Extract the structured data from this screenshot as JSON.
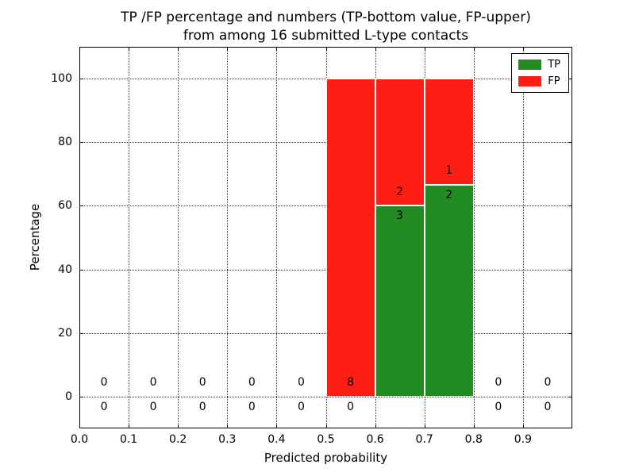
{
  "chart_data": {
    "type": "bar",
    "stacked": true,
    "title_line1": "TP /FP percentage and numbers (TP-bottom value, FP-upper)",
    "title_line2": "from among 16 submitted L-type contacts",
    "xlabel": "Predicted probability",
    "ylabel": "Percentage",
    "total_contacts": 16,
    "xlim": [
      0,
      1
    ],
    "ylim": [
      -10,
      110
    ],
    "bin_width": 0.1,
    "bin_starts": [
      0.0,
      0.1,
      0.2,
      0.3,
      0.4,
      0.5,
      0.6,
      0.7,
      0.8,
      0.9
    ],
    "xticks": [
      "0.0",
      "0.1",
      "0.2",
      "0.3",
      "0.4",
      "0.5",
      "0.6",
      "0.7",
      "0.8",
      "0.9"
    ],
    "yticks": [
      0,
      20,
      40,
      60,
      80,
      100
    ],
    "grid": "dotted",
    "series": [
      {
        "name": "TP",
        "color": "#228b22",
        "counts": [
          0,
          0,
          0,
          0,
          0,
          0,
          3,
          2,
          0,
          0
        ],
        "percentages": [
          0,
          0,
          0,
          0,
          0,
          0,
          60,
          66.667,
          0,
          0
        ]
      },
      {
        "name": "FP",
        "color": "#ff1d14",
        "counts": [
          0,
          0,
          0,
          0,
          0,
          8,
          2,
          1,
          0,
          0
        ],
        "percentages": [
          0,
          0,
          0,
          0,
          0,
          100,
          40,
          33.333,
          0,
          0
        ]
      }
    ],
    "legend": {
      "position": "upper right",
      "entries": [
        {
          "label": "TP",
          "color": "#228b22"
        },
        {
          "label": "FP",
          "color": "#ff1d14"
        }
      ]
    }
  }
}
